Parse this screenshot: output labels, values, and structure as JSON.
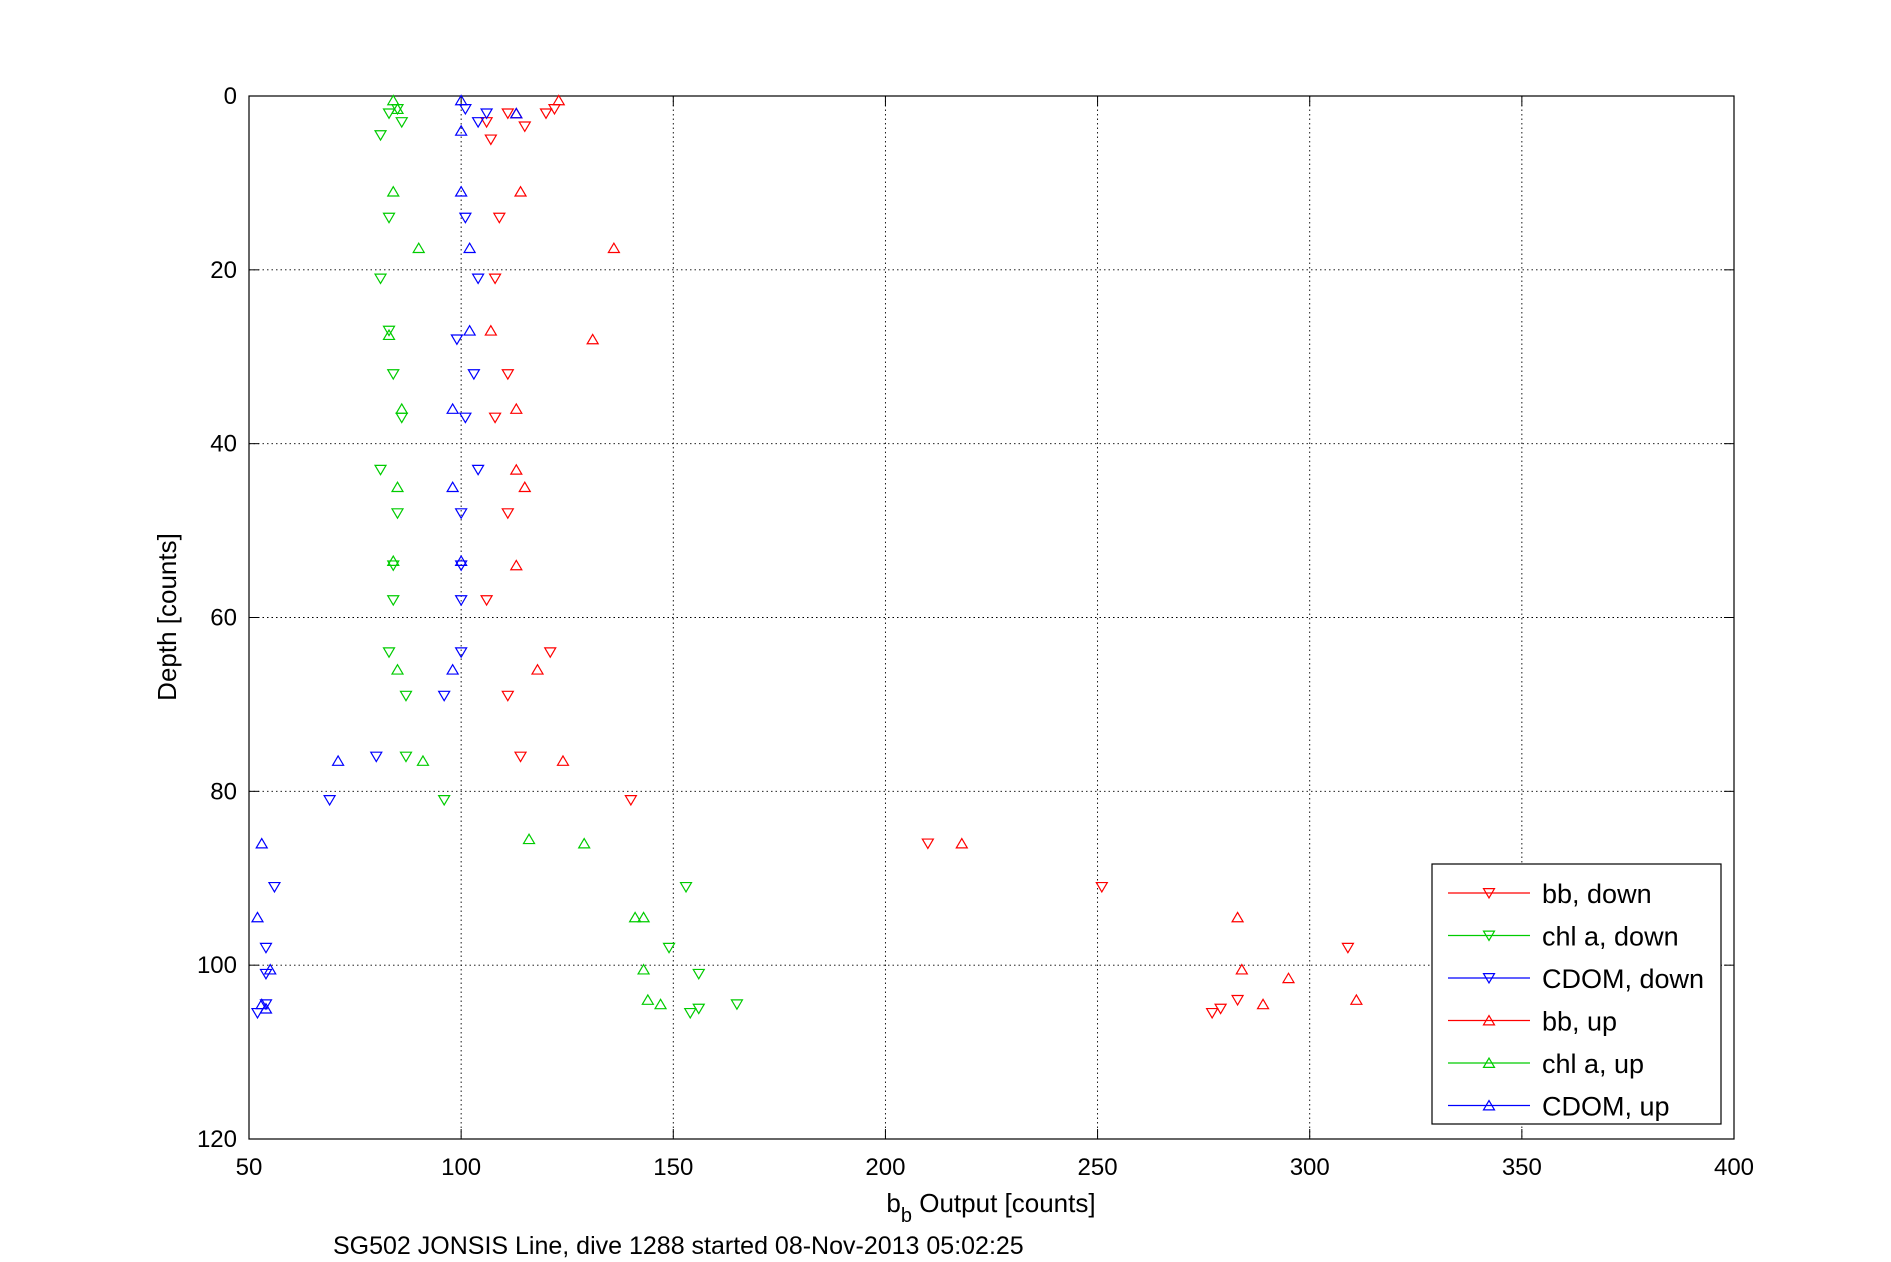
{
  "chart_data": {
    "type": "scatter",
    "xlabel": {
      "main": "b",
      "sub": "b",
      "rest": " Output [counts]"
    },
    "ylabel": "Depth [counts]",
    "caption": "SG502 JONSIS Line, dive 1288 started 08-Nov-2013 05:02:25",
    "xlim": [
      50,
      400
    ],
    "ylim": [
      0,
      120
    ],
    "y_reversed": true,
    "xticks": [
      50,
      100,
      150,
      200,
      250,
      300,
      350,
      400
    ],
    "yticks": [
      0,
      20,
      40,
      60,
      80,
      100,
      120
    ],
    "grid": true,
    "legend_position": "bottom-right",
    "series": [
      {
        "name": "bb, down",
        "color": "#ff0000",
        "marker": "triangle-down",
        "points": [
          [
            122,
            1.5
          ],
          [
            120,
            2
          ],
          [
            111,
            2
          ],
          [
            106,
            3
          ],
          [
            115,
            3.5
          ],
          [
            107,
            5
          ],
          [
            109,
            14
          ],
          [
            108,
            21
          ],
          [
            111,
            32
          ],
          [
            108,
            37
          ],
          [
            111,
            48
          ],
          [
            106,
            58
          ],
          [
            121,
            64
          ],
          [
            111,
            69
          ],
          [
            114,
            76
          ],
          [
            140,
            81
          ],
          [
            210,
            86
          ],
          [
            251,
            91
          ],
          [
            309,
            98
          ],
          [
            283,
            104
          ],
          [
            279,
            105
          ],
          [
            277,
            105.5
          ]
        ]
      },
      {
        "name": "chl a, down",
        "color": "#00cc00",
        "marker": "triangle-down",
        "points": [
          [
            85,
            1.5
          ],
          [
            83,
            2
          ],
          [
            86,
            3
          ],
          [
            81,
            4.5
          ],
          [
            83,
            14
          ],
          [
            81,
            21
          ],
          [
            83,
            27
          ],
          [
            84,
            32
          ],
          [
            86,
            37
          ],
          [
            81,
            43
          ],
          [
            85,
            48
          ],
          [
            84,
            54
          ],
          [
            84,
            58
          ],
          [
            83,
            64
          ],
          [
            87,
            69
          ],
          [
            87,
            76
          ],
          [
            96,
            81
          ],
          [
            153,
            91
          ],
          [
            149,
            98
          ],
          [
            156,
            101
          ],
          [
            165,
            104.5
          ],
          [
            156,
            105
          ],
          [
            154,
            105.5
          ]
        ]
      },
      {
        "name": "CDOM, down",
        "color": "#0000ff",
        "marker": "triangle-down",
        "points": [
          [
            101,
            1.5
          ],
          [
            106,
            2
          ],
          [
            104,
            3
          ],
          [
            101,
            14
          ],
          [
            104,
            21
          ],
          [
            99,
            28
          ],
          [
            103,
            32
          ],
          [
            101,
            37
          ],
          [
            104,
            43
          ],
          [
            100,
            48
          ],
          [
            100,
            54
          ],
          [
            100,
            58
          ],
          [
            100,
            64
          ],
          [
            96,
            69
          ],
          [
            80,
            76
          ],
          [
            69,
            81
          ],
          [
            56,
            91
          ],
          [
            54,
            98
          ],
          [
            54,
            101
          ],
          [
            54,
            104.5
          ],
          [
            52,
            105.5
          ]
        ]
      },
      {
        "name": "bb, up",
        "color": "#ff0000",
        "marker": "triangle-up",
        "points": [
          [
            123,
            0.5
          ],
          [
            113,
            2
          ],
          [
            114,
            11
          ],
          [
            136,
            17.5
          ],
          [
            107,
            27
          ],
          [
            131,
            28
          ],
          [
            113,
            36
          ],
          [
            113,
            43
          ],
          [
            115,
            45
          ],
          [
            113,
            54
          ],
          [
            118,
            66
          ],
          [
            124,
            76.5
          ],
          [
            218,
            86
          ],
          [
            283,
            94.5
          ],
          [
            284,
            100.5
          ],
          [
            295,
            101.5
          ],
          [
            311,
            104
          ],
          [
            289,
            104.5
          ]
        ]
      },
      {
        "name": "chl a, up",
        "color": "#00cc00",
        "marker": "triangle-up",
        "points": [
          [
            84,
            0.5
          ],
          [
            85,
            1.5
          ],
          [
            84,
            11
          ],
          [
            90,
            17.5
          ],
          [
            83,
            27.5
          ],
          [
            86,
            36
          ],
          [
            85,
            45
          ],
          [
            84,
            53.5
          ],
          [
            85,
            66
          ],
          [
            91,
            76.5
          ],
          [
            116,
            85.5
          ],
          [
            129,
            86
          ],
          [
            141,
            94.5
          ],
          [
            143,
            94.5
          ],
          [
            143,
            100.5
          ],
          [
            144,
            104
          ],
          [
            147,
            104.5
          ]
        ]
      },
      {
        "name": "CDOM, up",
        "color": "#0000ff",
        "marker": "triangle-up",
        "points": [
          [
            100,
            0.5
          ],
          [
            113,
            2
          ],
          [
            100,
            4
          ],
          [
            100,
            11
          ],
          [
            102,
            17.5
          ],
          [
            102,
            27
          ],
          [
            98,
            36
          ],
          [
            98,
            45
          ],
          [
            100,
            53.5
          ],
          [
            98,
            66
          ],
          [
            71,
            76.5
          ],
          [
            53,
            86
          ],
          [
            52,
            94.5
          ],
          [
            55,
            100.5
          ],
          [
            53,
            104.5
          ],
          [
            54,
            105
          ]
        ]
      }
    ]
  }
}
